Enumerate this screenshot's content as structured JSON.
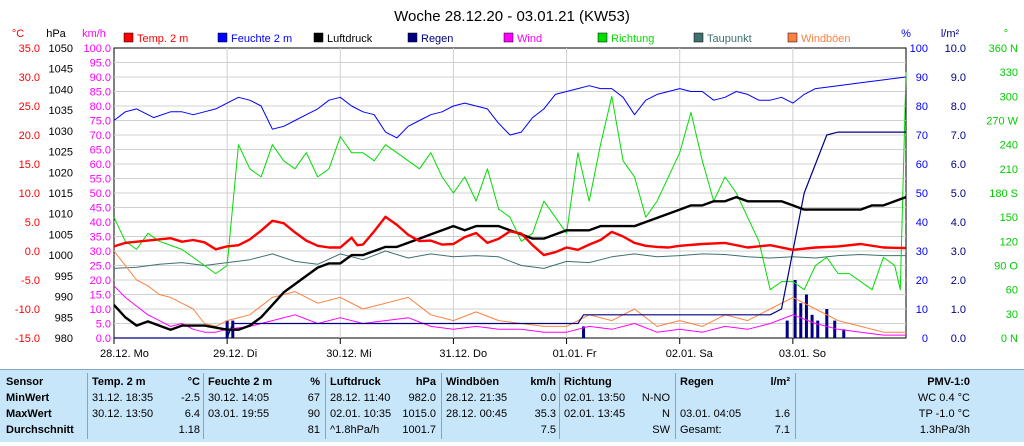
{
  "chart_data": {
    "type": "line",
    "title": "Woche 28.12.20 - 03.01.21 (KW53)",
    "x_labels": [
      "28.12.  Mo",
      "29.12.  Di",
      "30.12.  Mi",
      "31.12.  Do",
      "01.01.  Fr",
      "02.01.  Sa",
      "03.01.  So"
    ],
    "axes": [
      {
        "unit": "°C",
        "color": "#ff0000",
        "ticks": [
          "35.0",
          "30.0",
          "25.0",
          "20.0",
          "15.0",
          "10.0",
          "5.0",
          "0.0",
          "-5.0",
          "-10.0",
          "-15.0"
        ],
        "ylim": [
          -15,
          35
        ]
      },
      {
        "unit": "hPa",
        "color": "#000000",
        "ticks": [
          "1050",
          "1045",
          "1040",
          "1035",
          "1030",
          "1025",
          "1020",
          "1015",
          "1010",
          "1005",
          "1000",
          "995",
          "990",
          "985",
          "980"
        ],
        "ylim": [
          980,
          1050
        ]
      },
      {
        "unit": "km/h",
        "color": "#ff00ff",
        "ticks": [
          "100.0",
          "95.0",
          "90.0",
          "85.0",
          "80.0",
          "75.0",
          "70.0",
          "65.0",
          "60.0",
          "55.0",
          "50.0",
          "45.0",
          "40.0",
          "35.0",
          "30.0",
          "25.0",
          "20.0",
          "15.0",
          "10.0",
          "5.0",
          "0.0"
        ],
        "ylim": [
          0,
          100
        ]
      },
      {
        "unit": "%",
        "color": "#0000ff",
        "ticks": [
          "100",
          "90",
          "80",
          "70",
          "60",
          "50",
          "40",
          "30",
          "20",
          "10",
          "0"
        ],
        "ylim": [
          0,
          100
        ]
      },
      {
        "unit": "l/m²",
        "color": "#000080",
        "ticks": [
          "10.0",
          "9.0",
          "8.0",
          "7.0",
          "6.0",
          "5.0",
          "4.0",
          "3.0",
          "2.0",
          "1.0",
          "0.0"
        ],
        "ylim": [
          0,
          10
        ]
      },
      {
        "unit": "°",
        "color": "#00cc00",
        "ticks": [
          "360 N",
          "330",
          "300",
          "270 W",
          "240",
          "210",
          "180 S",
          "150",
          "120",
          "90 O",
          "60",
          "30",
          "0 N"
        ],
        "ylim": [
          0,
          360
        ]
      }
    ],
    "legend": [
      {
        "name": "Temp. 2 m",
        "color": "#ff0000"
      },
      {
        "name": "Feuchte  2 m",
        "color": "#0000ff"
      },
      {
        "name": "Luftdruck",
        "color": "#000000"
      },
      {
        "name": "Regen",
        "color": "#000080"
      },
      {
        "name": "Wind",
        "color": "#ff00ff"
      },
      {
        "name": "Richtung",
        "color": "#00dd00"
      },
      {
        "name": "Taupunkt",
        "color": "#407070"
      },
      {
        "name": "Windböen",
        "color": "#ff8040"
      }
    ],
    "series": [
      {
        "name": "Temp. 2 m",
        "unit": "°C",
        "color": "#ff0000",
        "width": 2.4,
        "x": [
          0,
          0.1,
          0.3,
          0.5,
          0.6,
          0.7,
          0.8,
          0.9,
          1.0,
          1.1,
          1.2,
          1.3,
          1.4,
          1.5,
          1.6,
          1.7,
          1.8,
          1.9,
          2.0,
          2.1,
          2.15,
          2.2,
          2.3,
          2.4,
          2.5,
          2.6,
          2.7,
          2.8,
          2.9,
          3.0,
          3.1,
          3.2,
          3.3,
          3.4,
          3.5,
          3.6,
          3.7,
          3.8,
          3.9,
          4.0,
          4.1,
          4.2,
          4.3,
          4.4,
          4.5,
          4.6,
          4.7,
          4.8,
          4.9,
          5.0,
          5.2,
          5.4,
          5.6,
          5.8,
          6.0,
          6.2,
          6.4,
          6.6,
          6.8,
          7.0
        ],
        "y": [
          0.8,
          1.4,
          1.8,
          2.2,
          1.6,
          1.9,
          1.5,
          0.3,
          0.8,
          1.0,
          2.0,
          3.5,
          5.2,
          4.8,
          3.2,
          1.8,
          0.9,
          0.6,
          0.6,
          2.3,
          1.0,
          1.1,
          3.4,
          5.9,
          4.5,
          2.8,
          1.7,
          1.8,
          1.1,
          1.2,
          2.4,
          3.1,
          1.4,
          2.1,
          3.4,
          3.0,
          1.0,
          -0.7,
          -0.2,
          0.6,
          0.2,
          1.1,
          1.9,
          3.3,
          2.5,
          1.4,
          0.9,
          0.7,
          0.6,
          0.9,
          1.2,
          1.4,
          0.6,
          1.0,
          0.2,
          0.6,
          0.8,
          1.2,
          0.6,
          0.5
        ]
      },
      {
        "name": "Feuchte  2 m",
        "unit": "%",
        "color": "#0000ff",
        "width": 1,
        "x": [
          0,
          0.1,
          0.2,
          0.35,
          0.5,
          0.6,
          0.7,
          0.8,
          0.9,
          1.0,
          1.1,
          1.2,
          1.3,
          1.4,
          1.5,
          1.6,
          1.7,
          1.8,
          1.9,
          2.0,
          2.1,
          2.2,
          2.3,
          2.4,
          2.5,
          2.6,
          2.7,
          2.8,
          2.9,
          3.0,
          3.1,
          3.2,
          3.3,
          3.4,
          3.5,
          3.6,
          3.7,
          3.8,
          3.9,
          4.0,
          4.1,
          4.2,
          4.3,
          4.4,
          4.5,
          4.6,
          4.7,
          4.8,
          4.9,
          5.0,
          5.1,
          5.2,
          5.3,
          5.4,
          5.5,
          5.6,
          5.7,
          5.8,
          5.9,
          6.0,
          6.1,
          6.2,
          6.4,
          6.6,
          6.8,
          7.0
        ],
        "y": [
          75,
          78,
          79,
          76,
          78,
          78,
          77,
          78,
          79,
          81,
          83,
          82,
          80,
          72,
          73,
          75,
          77,
          79,
          82,
          83,
          80,
          78,
          77,
          71,
          69,
          73,
          75,
          77,
          78,
          80,
          81,
          80,
          79,
          74,
          70,
          71,
          76,
          79,
          84,
          85,
          86,
          87,
          86,
          86,
          83,
          77,
          82,
          84,
          85,
          86,
          85,
          85,
          82,
          83,
          85,
          84,
          82,
          82,
          83,
          81,
          84,
          86,
          87,
          88,
          89,
          90
        ]
      },
      {
        "name": "Luftdruck",
        "unit": "hPa",
        "color": "#000000",
        "width": 2.4,
        "x": [
          0,
          0.1,
          0.2,
          0.3,
          0.4,
          0.5,
          0.6,
          0.8,
          1.0,
          1.1,
          1.2,
          1.3,
          1.4,
          1.5,
          1.6,
          1.7,
          1.8,
          1.9,
          2.0,
          2.1,
          2.2,
          2.3,
          2.4,
          2.5,
          2.6,
          2.7,
          2.8,
          2.9,
          3.0,
          3.1,
          3.2,
          3.3,
          3.4,
          3.5,
          3.6,
          3.7,
          3.8,
          3.9,
          4.0,
          4.1,
          4.2,
          4.3,
          4.4,
          4.5,
          4.6,
          4.7,
          4.8,
          4.9,
          5.0,
          5.1,
          5.2,
          5.3,
          5.4,
          5.5,
          5.6,
          5.7,
          5.8,
          5.9,
          6.0,
          6.1,
          6.2,
          6.3,
          6.4,
          6.5,
          6.6,
          6.7,
          6.8,
          6.9,
          7.0
        ],
        "y": [
          988,
          985,
          983,
          984,
          983,
          982,
          983,
          983,
          982,
          982,
          983,
          985,
          988,
          991,
          993,
          995,
          997,
          998,
          998,
          1000,
          1000,
          1001,
          1002,
          1002,
          1003,
          1004,
          1005,
          1006,
          1007,
          1006,
          1007,
          1007,
          1007,
          1006,
          1005,
          1004,
          1004,
          1005,
          1006,
          1006,
          1006,
          1007,
          1007,
          1007,
          1007,
          1008,
          1009,
          1010,
          1011,
          1012,
          1012,
          1013,
          1013,
          1014,
          1013,
          1013,
          1013,
          1013,
          1012,
          1011,
          1011,
          1011,
          1011,
          1011,
          1011,
          1012,
          1012,
          1013,
          1014
        ]
      },
      {
        "name": "Regen",
        "unit": "l/m²",
        "color": "#000080",
        "width": 1.2,
        "x": [
          0,
          1.0,
          1.05,
          4.1,
          4.15,
          5.8,
          5.9,
          6.0,
          6.1,
          6.2,
          6.3,
          6.4,
          6.6,
          7.0
        ],
        "y": [
          0.0,
          0.0,
          0.5,
          0.5,
          0.8,
          0.8,
          1.0,
          3.0,
          5.0,
          6.0,
          7.0,
          7.1,
          7.1,
          7.1
        ]
      },
      {
        "name": "Wind",
        "unit": "km/h",
        "color": "#ff00ff",
        "width": 1,
        "x": [
          0,
          0.1,
          0.2,
          0.3,
          0.4,
          0.5,
          0.6,
          0.7,
          0.8,
          0.9,
          1.0,
          1.2,
          1.4,
          1.6,
          1.8,
          2.0,
          2.2,
          2.4,
          2.6,
          2.8,
          3.0,
          3.2,
          3.4,
          3.6,
          3.8,
          4.0,
          4.2,
          4.4,
          4.6,
          4.8,
          5.0,
          5.2,
          5.4,
          5.6,
          5.8,
          6.0,
          6.2,
          6.4,
          6.6,
          6.8,
          7.0
        ],
        "y": [
          18,
          14,
          11,
          8,
          6,
          4,
          5,
          3,
          2,
          2,
          3,
          4,
          6,
          8,
          5,
          7,
          5,
          6,
          7,
          4,
          3,
          4,
          3,
          3,
          2,
          2,
          4,
          3,
          5,
          2,
          3,
          2,
          4,
          3,
          5,
          8,
          5,
          3,
          2,
          1,
          1
        ]
      },
      {
        "name": "Richtung",
        "unit": "°",
        "color": "#00dd00",
        "width": 1,
        "x": [
          0,
          0.1,
          0.2,
          0.3,
          0.4,
          0.5,
          0.6,
          0.7,
          0.8,
          0.9,
          1.0,
          1.1,
          1.2,
          1.3,
          1.4,
          1.5,
          1.6,
          1.7,
          1.8,
          1.9,
          2.0,
          2.1,
          2.2,
          2.3,
          2.4,
          2.5,
          2.6,
          2.7,
          2.8,
          2.9,
          3.0,
          3.1,
          3.2,
          3.3,
          3.4,
          3.5,
          3.6,
          3.7,
          3.8,
          3.9,
          4.0,
          4.1,
          4.2,
          4.3,
          4.4,
          4.5,
          4.6,
          4.7,
          4.8,
          4.9,
          5.0,
          5.1,
          5.2,
          5.3,
          5.4,
          5.5,
          5.6,
          5.7,
          5.8,
          5.9,
          6.0,
          6.1,
          6.2,
          6.3,
          6.4,
          6.5,
          6.6,
          6.7,
          6.8,
          6.9,
          6.95,
          7.0
        ],
        "y": [
          150,
          120,
          110,
          130,
          120,
          115,
          110,
          100,
          90,
          80,
          90,
          240,
          210,
          200,
          240,
          220,
          210,
          230,
          200,
          210,
          250,
          230,
          230,
          220,
          240,
          230,
          220,
          210,
          230,
          200,
          180,
          200,
          170,
          210,
          160,
          150,
          120,
          130,
          170,
          150,
          130,
          230,
          170,
          240,
          300,
          220,
          200,
          150,
          170,
          200,
          230,
          280,
          220,
          170,
          200,
          180,
          150,
          120,
          60,
          70,
          70,
          60,
          90,
          100,
          80,
          80,
          70,
          60,
          100,
          90,
          60,
          330
        ]
      },
      {
        "name": "Taupunkt",
        "unit": "°C",
        "color": "#407070",
        "width": 1,
        "x": [
          0,
          0.2,
          0.4,
          0.6,
          0.8,
          1.0,
          1.2,
          1.4,
          1.6,
          1.8,
          2.0,
          2.2,
          2.4,
          2.6,
          2.8,
          3.0,
          3.2,
          3.4,
          3.6,
          3.8,
          4.0,
          4.2,
          4.4,
          4.6,
          4.8,
          5.0,
          5.2,
          5.4,
          5.6,
          5.8,
          6.0,
          6.2,
          6.4,
          6.6,
          6.8,
          7.0
        ],
        "y": [
          -3.0,
          -2.8,
          -2.3,
          -2.0,
          -2.5,
          -2.0,
          -1.5,
          -0.5,
          -1.8,
          -2.3,
          -0.5,
          -1.5,
          0.0,
          -1.2,
          -0.5,
          -1.0,
          -0.8,
          -1.0,
          -2.5,
          -3.0,
          -1.8,
          -2.0,
          -1.0,
          -0.5,
          -1.0,
          -0.8,
          -0.5,
          -0.6,
          -1.0,
          -1.2,
          -1.0,
          -1.2,
          -0.8,
          -0.6,
          -0.8,
          -0.8
        ]
      },
      {
        "name": "Windböen",
        "unit": "km/h",
        "color": "#ff8040",
        "width": 1,
        "x": [
          0,
          0.1,
          0.2,
          0.3,
          0.4,
          0.5,
          0.6,
          0.7,
          0.8,
          0.9,
          1.0,
          1.2,
          1.4,
          1.6,
          1.8,
          2.0,
          2.2,
          2.4,
          2.6,
          2.8,
          3.0,
          3.2,
          3.4,
          3.6,
          3.8,
          4.0,
          4.2,
          4.4,
          4.6,
          4.8,
          5.0,
          5.2,
          5.4,
          5.6,
          5.8,
          6.0,
          6.2,
          6.4,
          6.6,
          6.8,
          7.0
        ],
        "y": [
          30,
          25,
          20,
          18,
          15,
          14,
          12,
          10,
          5,
          4,
          6,
          8,
          14,
          16,
          12,
          14,
          10,
          12,
          14,
          8,
          6,
          9,
          6,
          5,
          4,
          4,
          8,
          6,
          10,
          4,
          6,
          4,
          8,
          6,
          10,
          14,
          10,
          6,
          4,
          2,
          2
        ]
      }
    ],
    "rain_bars": {
      "unit": "l/m²",
      "color": "#000080",
      "x": [
        1.0,
        1.05,
        4.15,
        5.95,
        6.02,
        6.07,
        6.12,
        6.17,
        6.22,
        6.3,
        6.37,
        6.45
      ],
      "values": [
        0.6,
        0.6,
        0.4,
        0.6,
        2.0,
        1.2,
        1.5,
        0.8,
        0.6,
        1.0,
        0.6,
        0.3
      ]
    }
  },
  "table": {
    "columns": [
      {
        "header": "Sensor",
        "header_unit": "",
        "rows": [
          [
            "MinWert",
            "",
            ""
          ],
          [
            "MaxWert",
            "",
            ""
          ],
          [
            "Durchschnitt",
            "",
            ""
          ]
        ]
      },
      {
        "header": "Temp.  2 m",
        "header_unit": "°C",
        "rows": [
          [
            "31.12.  18:35",
            "",
            "-2.5"
          ],
          [
            "30.12.  13:50",
            "",
            "6.4"
          ],
          [
            "",
            "",
            "1.18"
          ]
        ]
      },
      {
        "header": "Feuchte  2 m",
        "header_unit": "%",
        "rows": [
          [
            "30.12.  14:05",
            "",
            "67"
          ],
          [
            "03.01.  19:55",
            "",
            "90"
          ],
          [
            "",
            "",
            "81"
          ]
        ]
      },
      {
        "header": "Luftdruck",
        "header_unit": "hPa",
        "rows": [
          [
            "28.12.  11:40",
            "",
            "982.0"
          ],
          [
            "02.01.  10:35",
            "",
            "1015.0"
          ],
          [
            "^1.8hPa/h",
            "",
            "1001.7"
          ]
        ]
      },
      {
        "header": "Windböen",
        "header_unit": "km/h",
        "rows": [
          [
            "28.12.  21:35",
            "",
            "0.0"
          ],
          [
            "28.12.  00:45",
            "",
            "35.3"
          ],
          [
            "",
            "",
            "7.5"
          ]
        ]
      },
      {
        "header": "Richtung",
        "header_unit": "",
        "rows": [
          [
            "02.01.  13:50",
            "",
            "N-NO"
          ],
          [
            "02.01.  13:45",
            "",
            "N"
          ],
          [
            "",
            "",
            "SW"
          ]
        ]
      },
      {
        "header": "Regen",
        "header_unit": "l/m²",
        "rows": [
          [
            "",
            "",
            ""
          ],
          [
            "03.01.  04:05",
            "",
            "1.6"
          ],
          [
            "Gesamt:",
            "",
            "7.1"
          ]
        ]
      },
      {
        "header": "PMV-1:0",
        "header_unit": "",
        "rows": [
          [
            "",
            "",
            "WC 0.4 °C"
          ],
          [
            "",
            "",
            "TP -1.0 °C"
          ],
          [
            "",
            "",
            "1.3hPa/3h"
          ]
        ]
      }
    ]
  }
}
